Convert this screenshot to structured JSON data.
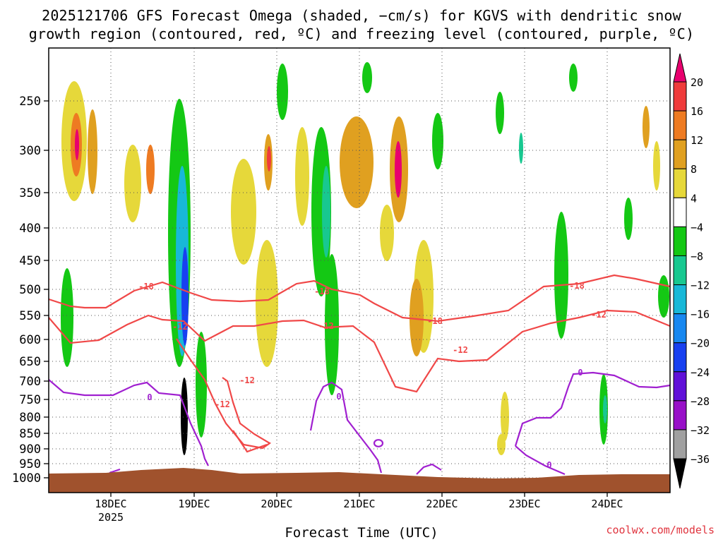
{
  "title_line1": "2025121706 GFS Forecast Omega (shaded, −cm/s) for KGVS with dendritic snow",
  "title_line2": "growth region (contoured, red, ºC) and freezing level (contoured, purple, ºC)",
  "credit": "coolwx.com/models",
  "chart_data": {
    "type": "heatmap",
    "xlabel": "Forecast Time (UTC)",
    "ylabel": "",
    "x_tick_labels": [
      "18DEC",
      "19DEC",
      "20DEC",
      "21DEC",
      "22DEC",
      "23DEC",
      "24DEC"
    ],
    "x_sublabel": "2025",
    "y_tick_labels": [
      "250",
      "300",
      "350",
      "400",
      "450",
      "500",
      "550",
      "600",
      "650",
      "700",
      "750",
      "800",
      "850",
      "900",
      "950",
      "1000"
    ],
    "y_scale": "log-pressure (inverted)",
    "grid": true,
    "colorbar": {
      "labels": [
        "20",
        "16",
        "12",
        "8",
        "4",
        "−4",
        "−8",
        "−12",
        "−16",
        "−20",
        "−24",
        "−28",
        "−32",
        "−36"
      ],
      "colors": [
        "#e8006e",
        "#ef3b3b",
        "#ee7b22",
        "#e0a020",
        "#e6d83a",
        "#ffffff",
        "#14c814",
        "#18c890",
        "#18b8d8",
        "#1888f0",
        "#1840f0",
        "#6010d8",
        "#9810c8",
        "#a0a0a0",
        "#000000"
      ]
    },
    "contour_labels": {
      "dendritic": [
        "-18",
        "-12",
        "-12",
        "-12",
        "-18",
        "-12",
        "-18",
        "-12",
        "-18",
        "-12"
      ],
      "freezing": [
        "0",
        "0",
        "0",
        "0"
      ]
    },
    "colors": {
      "dendritic_contour": "#f04848",
      "freezing_contour": "#a020d0",
      "ground": "#a0522d"
    }
  }
}
